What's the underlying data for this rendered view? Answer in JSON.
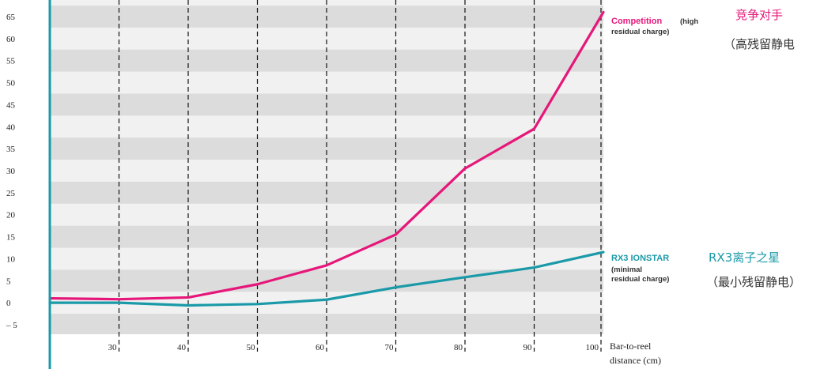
{
  "chart_data": {
    "type": "line",
    "x": [
      20,
      30,
      40,
      50,
      60,
      70,
      80,
      90,
      100
    ],
    "x_tick_labels": [
      "30",
      "40",
      "50",
      "60",
      "70",
      "80",
      "90",
      "100"
    ],
    "x_ticks": [
      30,
      40,
      50,
      60,
      70,
      80,
      90,
      100
    ],
    "xlim": [
      20,
      100
    ],
    "ylim": [
      -7,
      67
    ],
    "y_ticks": [
      -5,
      0,
      5,
      10,
      15,
      20,
      25,
      30,
      35,
      40,
      45,
      50,
      55,
      60,
      65
    ],
    "y_tick_labels": [
      "– 5",
      "0",
      "5",
      "10",
      "15",
      "20",
      "25",
      "30",
      "35",
      "40",
      "45",
      "50",
      "55",
      "60",
      "65"
    ],
    "xlabel_line1": "Bar-to-reel",
    "xlabel_line2": "distance (cm)",
    "grid": "vertical dashed",
    "series": [
      {
        "name": "Competition",
        "note_line1": "(high",
        "note_line2": "residual charge)",
        "color": "#e6177a",
        "values": [
          1,
          0.8,
          1.2,
          4.2,
          8.5,
          15.5,
          30.5,
          39.5,
          66
        ]
      },
      {
        "name": "RX3 IONSTAR",
        "note_line1": "(minimal",
        "note_line2": "residual charge)",
        "color": "#1a9aa8",
        "values": [
          0,
          0,
          -0.6,
          -0.3,
          0.7,
          3.5,
          5.8,
          8,
          11.5
        ]
      }
    ]
  },
  "annotations": {
    "competition_cn": "竞争对手",
    "competition_cn_note": "（高残留静电",
    "ionstar_cn": "RX3离子之星",
    "ionstar_cn_note": "（最小残留静电）"
  }
}
